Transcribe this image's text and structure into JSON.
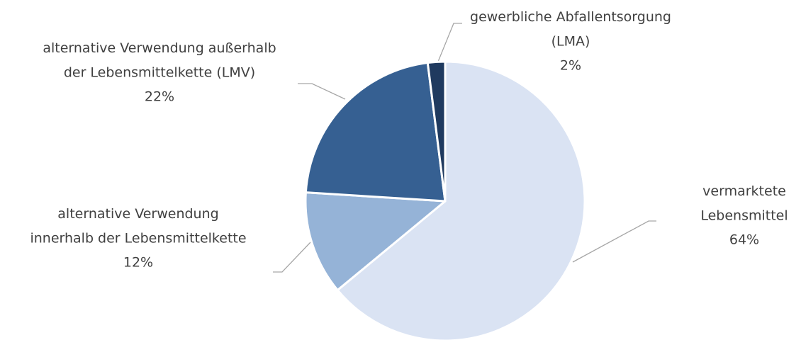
{
  "chart_data": {
    "type": "pie",
    "categories": [
      "vermarktete\nLebensmittel",
      "alternative Verwendung\ninnerhalb der Lebensmittelkette",
      "alternative Verwendung außerhalb\nder Lebensmittelkette (LMV)",
      "gewerbliche Abfallentsorgung\n(LMA)"
    ],
    "values": [
      64,
      12,
      22,
      2
    ],
    "value_labels": [
      "64%",
      "12%",
      "22%",
      "2%"
    ],
    "colors": [
      "#dae3f3",
      "#95b3d7",
      "#366092",
      "#1f3a5f"
    ]
  }
}
